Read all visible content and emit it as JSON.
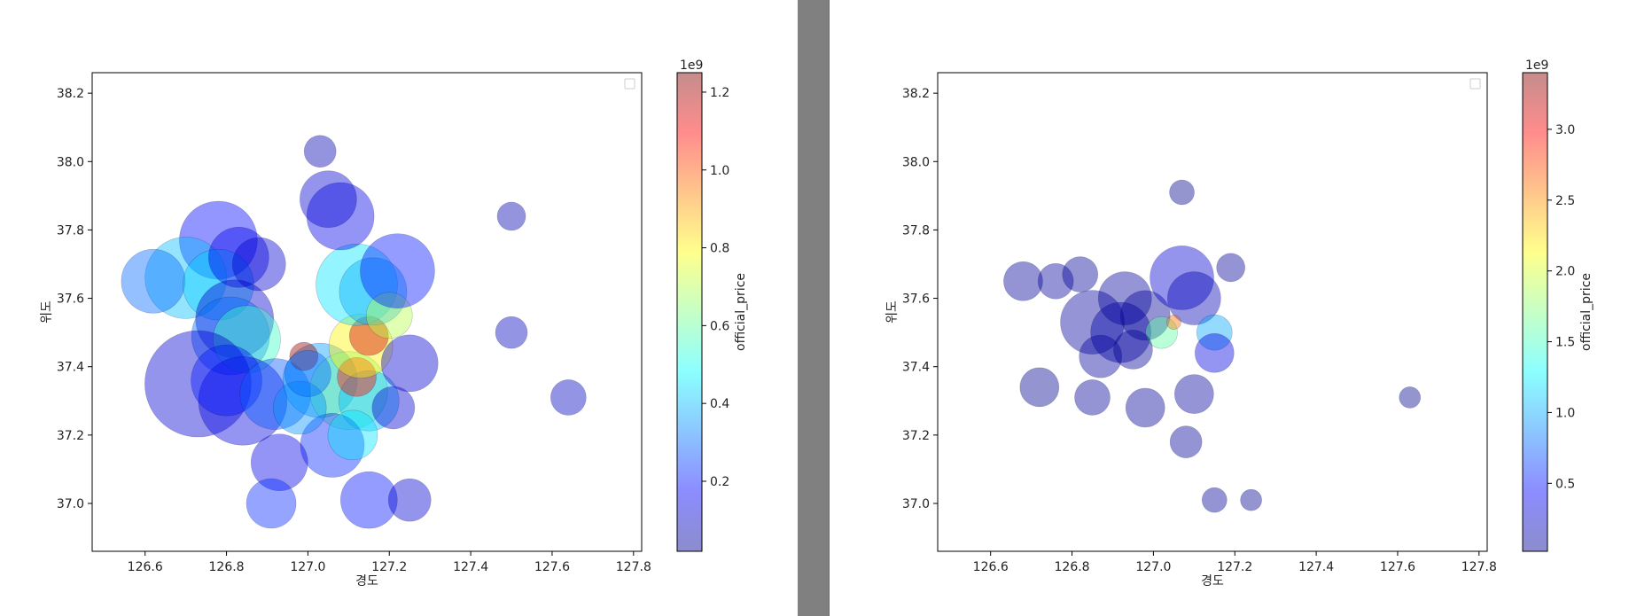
{
  "divider": {
    "color": "#808080",
    "edge_color": "#6e6e6e"
  },
  "colormap": "jet",
  "chart_data": [
    {
      "type": "scatter",
      "title": "",
      "xlabel": "경도",
      "ylabel": "위도",
      "xlim": [
        126.47,
        127.82
      ],
      "ylim": [
        36.86,
        38.26
      ],
      "xticks": [
        "126.6",
        "126.8",
        "127.0",
        "127.2",
        "127.4",
        "127.6",
        "127.8"
      ],
      "yticks": [
        "37.0",
        "37.2",
        "37.4",
        "37.6",
        "37.8",
        "38.0",
        "38.2"
      ],
      "legend": "top-right (empty)",
      "grid": false,
      "colorbar": {
        "label": "official_price",
        "multiplier": "1e9",
        "range": [
          0.02,
          1.25
        ],
        "ticks": [
          "0.2",
          "0.4",
          "0.6",
          "0.8",
          "1.0",
          "1.2"
        ]
      },
      "points": [
        {
          "x": 126.78,
          "y": 37.77,
          "value": 0.18,
          "size": 44
        },
        {
          "x": 126.7,
          "y": 37.66,
          "value": 0.4,
          "size": 46
        },
        {
          "x": 126.62,
          "y": 37.65,
          "value": 0.3,
          "size": 36
        },
        {
          "x": 126.78,
          "y": 37.64,
          "value": 0.42,
          "size": 40
        },
        {
          "x": 126.83,
          "y": 37.72,
          "value": 0.15,
          "size": 34
        },
        {
          "x": 126.88,
          "y": 37.7,
          "value": 0.12,
          "size": 30
        },
        {
          "x": 126.82,
          "y": 37.54,
          "value": 0.12,
          "size": 44
        },
        {
          "x": 126.81,
          "y": 37.49,
          "value": 0.3,
          "size": 44
        },
        {
          "x": 126.85,
          "y": 37.48,
          "value": 0.55,
          "size": 38
        },
        {
          "x": 126.73,
          "y": 37.35,
          "value": 0.12,
          "size": 60
        },
        {
          "x": 126.84,
          "y": 37.3,
          "value": 0.14,
          "size": 50
        },
        {
          "x": 126.8,
          "y": 37.36,
          "value": 0.2,
          "size": 40
        },
        {
          "x": 126.92,
          "y": 37.32,
          "value": 0.28,
          "size": 40
        },
        {
          "x": 127.03,
          "y": 37.36,
          "value": 0.36,
          "size": 42
        },
        {
          "x": 127.1,
          "y": 37.33,
          "value": 0.6,
          "size": 44
        },
        {
          "x": 127.15,
          "y": 37.3,
          "value": 0.4,
          "size": 34
        },
        {
          "x": 127.12,
          "y": 37.37,
          "value": 1.08,
          "size": 22
        },
        {
          "x": 127.13,
          "y": 37.46,
          "value": 0.8,
          "size": 36
        },
        {
          "x": 127.15,
          "y": 37.49,
          "value": 1.15,
          "size": 22
        },
        {
          "x": 126.99,
          "y": 37.43,
          "value": 1.22,
          "size": 16
        },
        {
          "x": 127.12,
          "y": 37.64,
          "value": 0.45,
          "size": 46
        },
        {
          "x": 127.16,
          "y": 37.62,
          "value": 0.38,
          "size": 38
        },
        {
          "x": 127.2,
          "y": 37.55,
          "value": 0.7,
          "size": 26
        },
        {
          "x": 127.22,
          "y": 37.68,
          "value": 0.2,
          "size": 42
        },
        {
          "x": 127.08,
          "y": 37.84,
          "value": 0.15,
          "size": 38
        },
        {
          "x": 127.05,
          "y": 37.89,
          "value": 0.12,
          "size": 32
        },
        {
          "x": 127.06,
          "y": 37.17,
          "value": 0.22,
          "size": 36
        },
        {
          "x": 127.11,
          "y": 37.2,
          "value": 0.45,
          "size": 28
        },
        {
          "x": 126.93,
          "y": 37.12,
          "value": 0.15,
          "size": 32
        },
        {
          "x": 126.91,
          "y": 37.0,
          "value": 0.22,
          "size": 28
        },
        {
          "x": 127.15,
          "y": 37.01,
          "value": 0.2,
          "size": 32
        },
        {
          "x": 127.25,
          "y": 37.01,
          "value": 0.12,
          "size": 24
        },
        {
          "x": 127.25,
          "y": 37.41,
          "value": 0.12,
          "size": 32
        },
        {
          "x": 127.21,
          "y": 37.28,
          "value": 0.12,
          "size": 24
        },
        {
          "x": 126.98,
          "y": 37.28,
          "value": 0.35,
          "size": 30
        },
        {
          "x": 127.0,
          "y": 37.38,
          "value": 0.3,
          "size": 26
        },
        {
          "x": 127.64,
          "y": 37.31,
          "value": 0.1,
          "size": 20
        },
        {
          "x": 127.5,
          "y": 37.5,
          "value": 0.1,
          "size": 18
        },
        {
          "x": 127.5,
          "y": 37.84,
          "value": 0.08,
          "size": 16
        },
        {
          "x": 127.03,
          "y": 38.03,
          "value": 0.08,
          "size": 18
        }
      ]
    },
    {
      "type": "scatter",
      "title": "",
      "xlabel": "경도",
      "ylabel": "위도",
      "xlim": [
        126.47,
        127.82
      ],
      "ylim": [
        36.86,
        38.26
      ],
      "xticks": [
        "126.6",
        "126.8",
        "127.0",
        "127.2",
        "127.4",
        "127.6",
        "127.8"
      ],
      "yticks": [
        "37.0",
        "37.2",
        "37.4",
        "37.6",
        "37.8",
        "38.0",
        "38.2"
      ],
      "legend": "top-right (empty)",
      "grid": false,
      "colorbar": {
        "label": "official_price",
        "multiplier": "1e9",
        "range": [
          0.02,
          3.4
        ],
        "ticks": [
          "0.5",
          "1.0",
          "1.5",
          "2.0",
          "2.5",
          "3.0"
        ]
      },
      "points": [
        {
          "x": 126.85,
          "y": 37.53,
          "value": 0.12,
          "size": 36
        },
        {
          "x": 126.92,
          "y": 37.5,
          "value": 0.15,
          "size": 34
        },
        {
          "x": 126.98,
          "y": 37.55,
          "value": 0.1,
          "size": 28
        },
        {
          "x": 126.93,
          "y": 37.6,
          "value": 0.12,
          "size": 30
        },
        {
          "x": 127.07,
          "y": 37.66,
          "value": 0.3,
          "size": 36
        },
        {
          "x": 127.1,
          "y": 37.6,
          "value": 0.2,
          "size": 30
        },
        {
          "x": 127.02,
          "y": 37.5,
          "value": 1.6,
          "size": 18
        },
        {
          "x": 127.05,
          "y": 37.53,
          "value": 2.6,
          "size": 8
        },
        {
          "x": 127.15,
          "y": 37.5,
          "value": 1.0,
          "size": 20
        },
        {
          "x": 126.72,
          "y": 37.34,
          "value": 0.08,
          "size": 22
        },
        {
          "x": 126.68,
          "y": 37.65,
          "value": 0.1,
          "size": 22
        },
        {
          "x": 126.76,
          "y": 37.65,
          "value": 0.12,
          "size": 20
        },
        {
          "x": 126.82,
          "y": 37.67,
          "value": 0.1,
          "size": 20
        },
        {
          "x": 126.87,
          "y": 37.43,
          "value": 0.12,
          "size": 24
        },
        {
          "x": 126.95,
          "y": 37.45,
          "value": 0.1,
          "size": 22
        },
        {
          "x": 127.15,
          "y": 37.44,
          "value": 0.35,
          "size": 22
        },
        {
          "x": 127.1,
          "y": 37.32,
          "value": 0.12,
          "size": 22
        },
        {
          "x": 126.98,
          "y": 37.28,
          "value": 0.1,
          "size": 22
        },
        {
          "x": 127.08,
          "y": 37.18,
          "value": 0.1,
          "size": 18
        },
        {
          "x": 126.85,
          "y": 37.31,
          "value": 0.1,
          "size": 20
        },
        {
          "x": 127.24,
          "y": 37.01,
          "value": 0.08,
          "size": 12
        },
        {
          "x": 127.15,
          "y": 37.01,
          "value": 0.1,
          "size": 14
        },
        {
          "x": 127.63,
          "y": 37.31,
          "value": 0.06,
          "size": 12
        },
        {
          "x": 127.07,
          "y": 37.91,
          "value": 0.06,
          "size": 14
        },
        {
          "x": 127.19,
          "y": 37.69,
          "value": 0.1,
          "size": 16
        }
      ]
    }
  ]
}
